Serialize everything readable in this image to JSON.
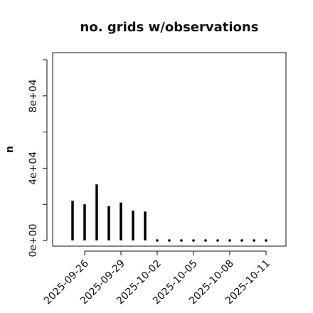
{
  "chart_data": {
    "type": "bar",
    "title": "no. grids w/observations",
    "xlabel": "",
    "ylabel": "n",
    "ylim": [
      0,
      100000
    ],
    "yticks": [
      0,
      20000,
      40000,
      60000,
      80000,
      100000
    ],
    "ytick_labels": [
      "0e+00",
      "",
      "4e+04",
      "",
      "8e+04",
      ""
    ],
    "categories": [
      "2025-09-25",
      "2025-09-26",
      "2025-09-27",
      "2025-09-28",
      "2025-09-29",
      "2025-09-30",
      "2025-10-01",
      "2025-10-02",
      "2025-10-03",
      "2025-10-04",
      "2025-10-05",
      "2025-10-06",
      "2025-10-07",
      "2025-10-08",
      "2025-10-09",
      "2025-10-10",
      "2025-10-11"
    ],
    "values": [
      22000,
      20000,
      31000,
      19000,
      21000,
      16500,
      16000,
      0,
      0,
      0,
      0,
      0,
      0,
      0,
      0,
      0,
      0
    ],
    "xticks": [
      "2025-09-26",
      "2025-09-29",
      "2025-10-02",
      "2025-10-05",
      "2025-10-08",
      "2025-10-11"
    ],
    "xtick_labels": [
      "2025-09-26",
      "2025-09-29",
      "2025-10-02",
      "2025-10-05",
      "2025-10-08",
      "2025-10-11"
    ],
    "highlight_tick": "2025-10-02",
    "colors": {
      "bar": "#000000",
      "axis": "#111111",
      "highlight": "#228B22"
    },
    "grid": false
  }
}
